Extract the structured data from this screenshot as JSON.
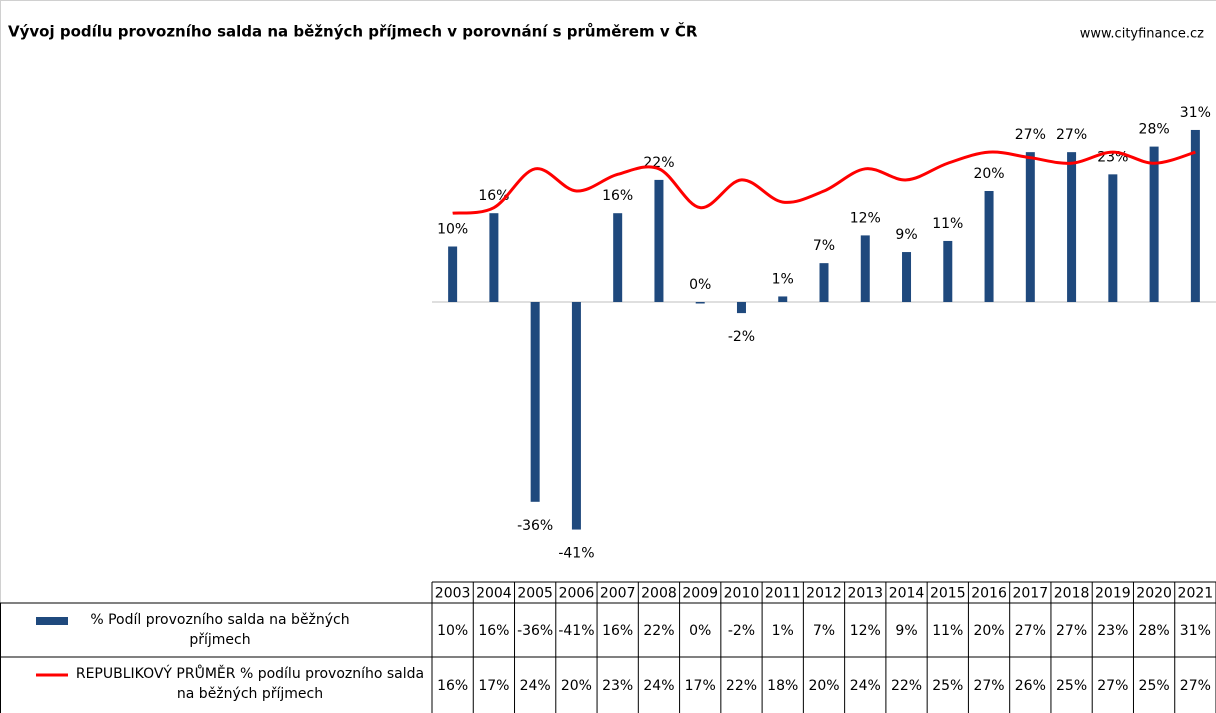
{
  "chart_data": {
    "type": "bar",
    "title": "Vývoj podílu provozního salda na běžných příjmech v porovnání s průměrem v ČR",
    "source": "www.cityfinance.cz",
    "categories": [
      "2003",
      "2004",
      "2005",
      "2006",
      "2007",
      "2008",
      "2009",
      "2010",
      "2011",
      "2012",
      "2013",
      "2014",
      "2015",
      "2016",
      "2017",
      "2018",
      "2019",
      "2020",
      "2021"
    ],
    "ylim": [
      -45,
      40
    ],
    "series": [
      {
        "name": "% Podíl provozního salda na běžných příjmech",
        "type": "bar",
        "color": "#1f497d",
        "values": [
          10,
          16,
          -36,
          -41,
          16,
          22,
          0,
          -2,
          1,
          7,
          12,
          9,
          11,
          20,
          27,
          27,
          23,
          28,
          31
        ],
        "value_labels": [
          "10%",
          "16%",
          "-36%",
          "-41%",
          "16%",
          "22%",
          "0%",
          "-2%",
          "1%",
          "7%",
          "12%",
          "9%",
          "11%",
          "20%",
          "27%",
          "27%",
          "23%",
          "28%",
          "31%"
        ]
      },
      {
        "name": "REPUBLIKOVÝ PRŮMĚR % podílu provozního salda na běžných příjmech",
        "type": "line",
        "color": "#ff0000",
        "values": [
          16,
          17,
          24,
          20,
          23,
          24,
          17,
          22,
          18,
          20,
          24,
          22,
          25,
          27,
          26,
          25,
          27,
          25,
          27
        ],
        "value_labels": [
          "16%",
          "17%",
          "24%",
          "20%",
          "23%",
          "24%",
          "17%",
          "22%",
          "18%",
          "20%",
          "24%",
          "22%",
          "25%",
          "27%",
          "26%",
          "25%",
          "27%",
          "25%",
          "27%"
        ]
      }
    ]
  }
}
